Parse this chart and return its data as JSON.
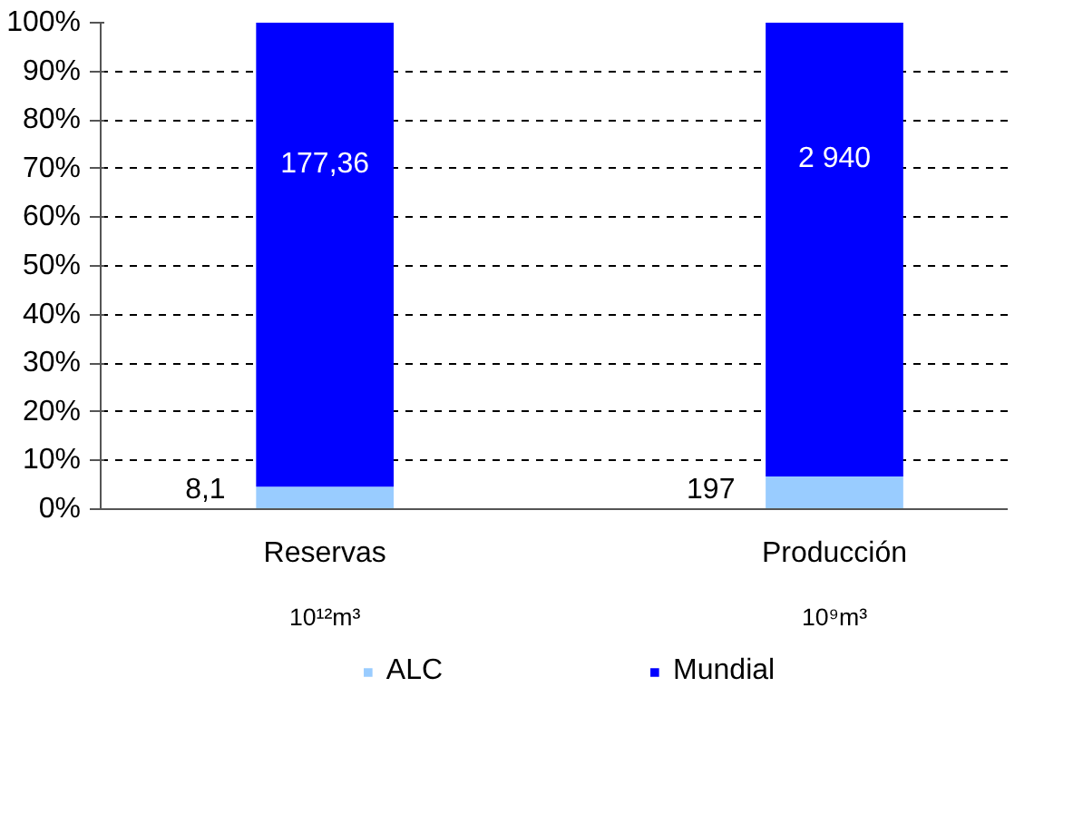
{
  "chart_data": {
    "type": "bar",
    "stacked": true,
    "categories": [
      "Reservas\n10¹²m³",
      "Producción\n10⁹m³"
    ],
    "series": [
      {
        "name": "ALC",
        "color": "#99ccff",
        "values": [
          4.6,
          6.7
        ]
      },
      {
        "name": "Mundial",
        "color": "#0000ff",
        "values": [
          95.4,
          93.3
        ]
      }
    ],
    "annotations": [
      "8,1",
      "197",
      "177,36",
      "2 940"
    ],
    "ylim": [
      0,
      100
    ],
    "yticks": [
      {
        "value": 0,
        "label": "0%"
      },
      {
        "value": 10,
        "label": "10%"
      },
      {
        "value": 20,
        "label": "20%"
      },
      {
        "value": 30,
        "label": "30%"
      },
      {
        "value": 40,
        "label": "40%"
      },
      {
        "value": 50,
        "label": "50%"
      },
      {
        "value": 60,
        "label": "60%"
      },
      {
        "value": 70,
        "label": "70%"
      },
      {
        "value": 80,
        "label": "80%"
      },
      {
        "value": 90,
        "label": "90%"
      },
      {
        "value": 100,
        "label": "100%"
      }
    ],
    "grid": "y",
    "legend": "bottom"
  }
}
